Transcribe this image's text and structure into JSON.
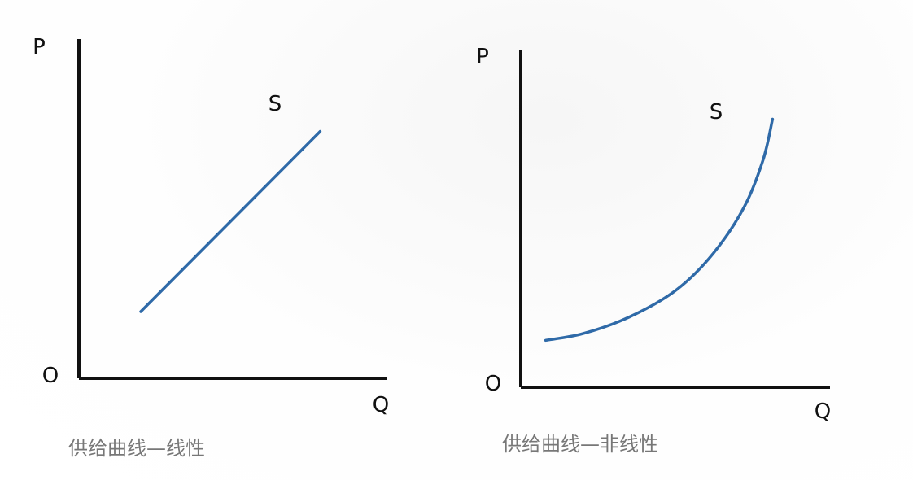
{
  "chart_data": [
    {
      "type": "line",
      "title": "供给曲线—线性",
      "xlabel": "Q",
      "ylabel": "P",
      "origin_label": "O",
      "series": [
        {
          "name": "S",
          "x": [
            0.2,
            0.78
          ],
          "y": [
            0.2,
            0.74
          ]
        }
      ],
      "xlim": [
        0,
        1
      ],
      "ylim": [
        0,
        1
      ],
      "grid": false,
      "color": "#2f6aa8"
    },
    {
      "type": "line",
      "title": "供给曲线—非线性",
      "xlabel": "Q",
      "ylabel": "P",
      "origin_label": "O",
      "series": [
        {
          "name": "S",
          "x": [
            0.08,
            0.2,
            0.35,
            0.5,
            0.62,
            0.72,
            0.78,
            0.81
          ],
          "y": [
            0.14,
            0.16,
            0.21,
            0.29,
            0.4,
            0.54,
            0.68,
            0.8
          ]
        }
      ],
      "xlim": [
        0,
        1
      ],
      "ylim": [
        0,
        1
      ],
      "grid": false,
      "color": "#2f6aa8"
    }
  ]
}
